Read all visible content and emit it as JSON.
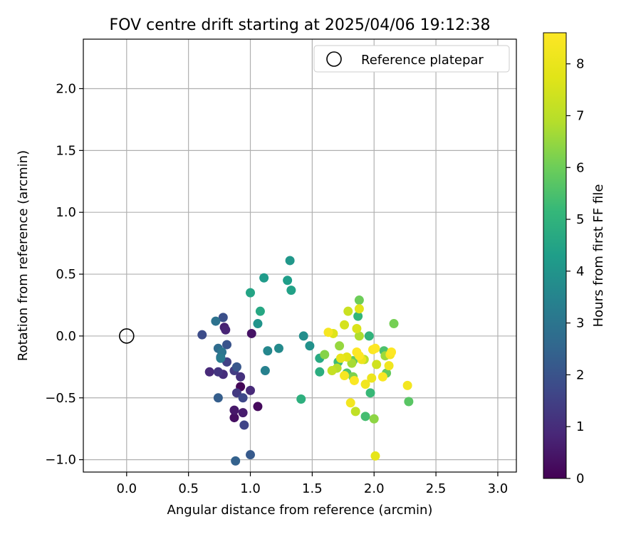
{
  "chart_data": {
    "type": "scatter",
    "title": "FOV centre drift starting at 2025/04/06 19:12:38",
    "xlabel": "Angular distance from reference (arcmin)",
    "ylabel": "Rotation from reference (arcmin)",
    "xlim": [
      -0.35,
      3.15
    ],
    "ylim": [
      -1.1,
      2.4
    ],
    "xticks": [
      0.0,
      0.5,
      1.0,
      1.5,
      2.0,
      2.5,
      3.0
    ],
    "xtick_labels": [
      "0.0",
      "0.5",
      "1.0",
      "1.5",
      "2.0",
      "2.5",
      "3.0"
    ],
    "yticks": [
      -1.0,
      -0.5,
      0.0,
      0.5,
      1.0,
      1.5,
      2.0
    ],
    "ytick_labels": [
      "−1.0",
      "−0.5",
      "0.0",
      "0.5",
      "1.0",
      "1.5",
      "2.0"
    ],
    "grid": true,
    "legend": {
      "position": "top-right",
      "entries": [
        "Reference platepar"
      ]
    },
    "reference_point": {
      "x": 0.0,
      "y": 0.0
    },
    "colorbar": {
      "label": "Hours from first FF file",
      "colormap": "viridis",
      "range": [
        0,
        8.6
      ],
      "ticks": [
        0,
        1,
        2,
        3,
        4,
        5,
        6,
        7,
        8
      ],
      "tick_labels": [
        "0",
        "1",
        "2",
        "3",
        "4",
        "5",
        "6",
        "7",
        "8"
      ]
    },
    "points": [
      {
        "x": 0.92,
        "y": -0.41,
        "h": 0.1
      },
      {
        "x": 1.06,
        "y": -0.57,
        "h": 0.2
      },
      {
        "x": 0.87,
        "y": -0.66,
        "h": 0.3
      },
      {
        "x": 1.01,
        "y": 0.02,
        "h": 0.4
      },
      {
        "x": 0.87,
        "y": -0.6,
        "h": 0.5
      },
      {
        "x": 0.94,
        "y": -0.62,
        "h": 0.6
      },
      {
        "x": 0.79,
        "y": 0.07,
        "h": 0.7
      },
      {
        "x": 0.8,
        "y": 0.05,
        "h": 0.8
      },
      {
        "x": 1.0,
        "y": -0.44,
        "h": 0.9
      },
      {
        "x": 0.67,
        "y": -0.29,
        "h": 0.9
      },
      {
        "x": 0.78,
        "y": -0.31,
        "h": 1.0
      },
      {
        "x": 0.92,
        "y": -0.33,
        "h": 1.1
      },
      {
        "x": 0.74,
        "y": -0.29,
        "h": 1.2
      },
      {
        "x": 0.89,
        "y": -0.46,
        "h": 1.3
      },
      {
        "x": 0.87,
        "y": -0.28,
        "h": 1.4
      },
      {
        "x": 0.81,
        "y": -0.21,
        "h": 1.5
      },
      {
        "x": 0.95,
        "y": -0.72,
        "h": 1.6
      },
      {
        "x": 0.94,
        "y": -0.5,
        "h": 1.7
      },
      {
        "x": 0.61,
        "y": 0.01,
        "h": 1.8
      },
      {
        "x": 0.78,
        "y": 0.15,
        "h": 1.9
      },
      {
        "x": 0.81,
        "y": -0.07,
        "h": 2.0
      },
      {
        "x": 0.89,
        "y": -0.25,
        "h": 2.1
      },
      {
        "x": 1.0,
        "y": -0.96,
        "h": 2.2
      },
      {
        "x": 0.74,
        "y": -0.5,
        "h": 2.3
      },
      {
        "x": 0.88,
        "y": -1.01,
        "h": 2.4
      },
      {
        "x": 0.76,
        "y": -0.17,
        "h": 2.5
      },
      {
        "x": 0.74,
        "y": -0.1,
        "h": 2.7
      },
      {
        "x": 0.72,
        "y": 0.12,
        "h": 2.9
      },
      {
        "x": 0.77,
        "y": -0.13,
        "h": 3.0
      },
      {
        "x": 0.76,
        "y": -0.18,
        "h": 3.2
      },
      {
        "x": 1.12,
        "y": -0.28,
        "h": 3.4
      },
      {
        "x": 1.14,
        "y": -0.12,
        "h": 3.6
      },
      {
        "x": 1.23,
        "y": -0.1,
        "h": 3.7
      },
      {
        "x": 1.43,
        "y": 0.0,
        "h": 3.8
      },
      {
        "x": 1.48,
        "y": -0.08,
        "h": 3.9
      },
      {
        "x": 1.06,
        "y": 0.1,
        "h": 4.0
      },
      {
        "x": 1.32,
        "y": 0.61,
        "h": 4.1
      },
      {
        "x": 1.11,
        "y": 0.47,
        "h": 4.2
      },
      {
        "x": 1.3,
        "y": 0.45,
        "h": 4.3
      },
      {
        "x": 1.33,
        "y": 0.37,
        "h": 4.4
      },
      {
        "x": 1.0,
        "y": 0.35,
        "h": 4.5
      },
      {
        "x": 1.08,
        "y": 0.2,
        "h": 4.6
      },
      {
        "x": 1.56,
        "y": -0.18,
        "h": 4.7
      },
      {
        "x": 1.56,
        "y": -0.29,
        "h": 4.8
      },
      {
        "x": 1.41,
        "y": -0.51,
        "h": 4.9
      },
      {
        "x": 1.96,
        "y": 0.0,
        "h": 5.0
      },
      {
        "x": 1.87,
        "y": 0.16,
        "h": 5.1
      },
      {
        "x": 1.97,
        "y": -0.46,
        "h": 5.2
      },
      {
        "x": 1.71,
        "y": -0.21,
        "h": 5.3
      },
      {
        "x": 1.93,
        "y": -0.65,
        "h": 5.4
      },
      {
        "x": 2.08,
        "y": -0.12,
        "h": 5.5
      },
      {
        "x": 1.78,
        "y": -0.3,
        "h": 5.6
      },
      {
        "x": 2.28,
        "y": -0.53,
        "h": 5.7
      },
      {
        "x": 1.83,
        "y": -0.2,
        "h": 5.8
      },
      {
        "x": 2.1,
        "y": -0.3,
        "h": 5.9
      },
      {
        "x": 1.88,
        "y": 0.29,
        "h": 6.0
      },
      {
        "x": 2.16,
        "y": 0.1,
        "h": 6.1
      },
      {
        "x": 1.83,
        "y": -0.33,
        "h": 6.2
      },
      {
        "x": 1.6,
        "y": -0.15,
        "h": 6.3
      },
      {
        "x": 2.0,
        "y": -0.67,
        "h": 6.4
      },
      {
        "x": 1.72,
        "y": -0.08,
        "h": 6.5
      },
      {
        "x": 2.09,
        "y": -0.16,
        "h": 6.6
      },
      {
        "x": 1.82,
        "y": -0.22,
        "h": 6.7
      },
      {
        "x": 1.88,
        "y": 0.0,
        "h": 6.8
      },
      {
        "x": 1.7,
        "y": -0.26,
        "h": 6.9
      },
      {
        "x": 1.92,
        "y": -0.19,
        "h": 7.0
      },
      {
        "x": 1.85,
        "y": -0.61,
        "h": 7.1
      },
      {
        "x": 1.66,
        "y": -0.28,
        "h": 7.2
      },
      {
        "x": 1.79,
        "y": 0.2,
        "h": 7.3
      },
      {
        "x": 2.02,
        "y": -0.23,
        "h": 7.4
      },
      {
        "x": 1.76,
        "y": 0.09,
        "h": 7.5
      },
      {
        "x": 1.86,
        "y": 0.06,
        "h": 7.6
      },
      {
        "x": 1.67,
        "y": 0.02,
        "h": 7.7
      },
      {
        "x": 1.78,
        "y": -0.17,
        "h": 7.8
      },
      {
        "x": 1.88,
        "y": 0.22,
        "h": 7.8
      },
      {
        "x": 2.01,
        "y": -0.97,
        "h": 7.9
      },
      {
        "x": 1.73,
        "y": -0.18,
        "h": 8.0
      },
      {
        "x": 1.9,
        "y": -0.19,
        "h": 8.1
      },
      {
        "x": 1.98,
        "y": -0.34,
        "h": 8.1
      },
      {
        "x": 1.93,
        "y": -0.39,
        "h": 8.2
      },
      {
        "x": 2.12,
        "y": -0.24,
        "h": 8.2
      },
      {
        "x": 1.81,
        "y": -0.54,
        "h": 8.3
      },
      {
        "x": 2.27,
        "y": -0.4,
        "h": 8.3
      },
      {
        "x": 1.76,
        "y": -0.32,
        "h": 8.4
      },
      {
        "x": 1.63,
        "y": 0.03,
        "h": 8.4
      },
      {
        "x": 2.13,
        "y": -0.15,
        "h": 8.4
      },
      {
        "x": 1.84,
        "y": -0.36,
        "h": 8.5
      },
      {
        "x": 1.99,
        "y": -0.11,
        "h": 8.5
      },
      {
        "x": 2.07,
        "y": -0.33,
        "h": 8.5
      },
      {
        "x": 1.86,
        "y": -0.13,
        "h": 8.6
      },
      {
        "x": 2.14,
        "y": -0.13,
        "h": 8.6
      },
      {
        "x": 2.01,
        "y": -0.1,
        "h": 8.6
      },
      {
        "x": 1.88,
        "y": -0.16,
        "h": 8.6
      }
    ]
  }
}
